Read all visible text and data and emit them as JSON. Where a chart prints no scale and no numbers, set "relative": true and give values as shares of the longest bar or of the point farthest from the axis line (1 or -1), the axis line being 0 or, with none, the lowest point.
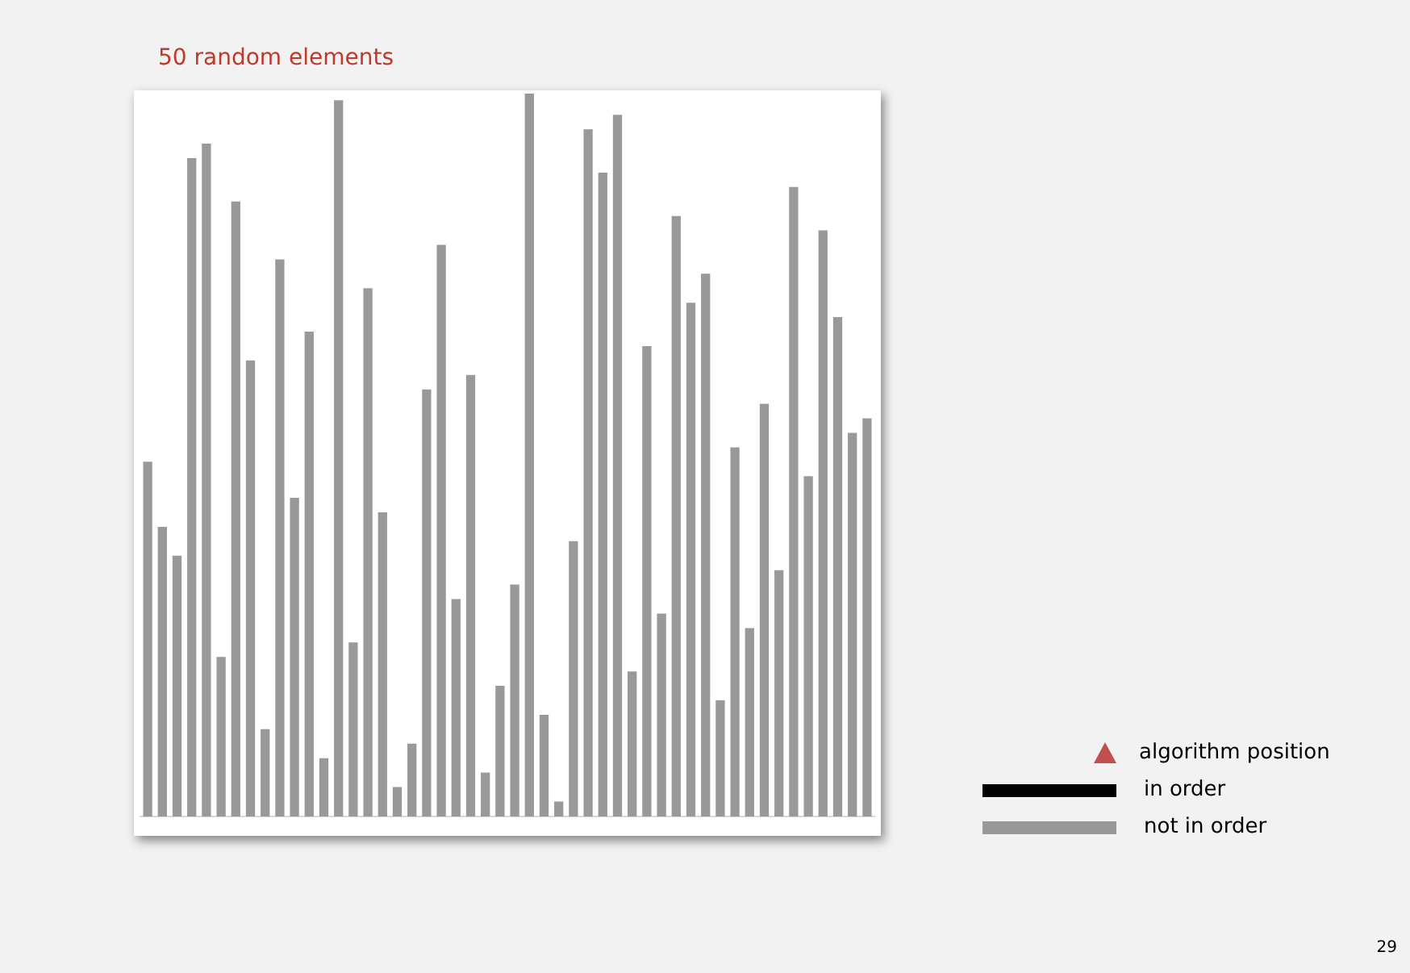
{
  "chart_data": {
    "type": "bar",
    "title": "50 random elements",
    "relative": true,
    "legend": "bottom right",
    "annotations": [
      "algorithm position",
      "in order",
      "29"
    ],
    "categories": [
      null,
      null,
      null,
      null,
      null,
      null,
      null,
      null,
      null,
      null,
      null,
      null,
      null,
      null,
      null,
      null,
      null,
      null,
      null,
      null,
      null,
      null,
      null,
      null,
      null,
      null,
      null,
      null,
      null,
      null,
      null,
      null,
      null,
      null,
      null,
      null,
      null,
      null,
      null,
      null,
      null,
      null,
      null,
      null,
      null,
      null,
      null,
      null,
      null,
      null
    ],
    "series": [
      {
        "name": "not in order",
        "color": "#999999",
        "values": [
          0.49,
          0.4,
          0.36,
          0.91,
          0.93,
          0.22,
          0.85,
          0.63,
          0.12,
          0.77,
          0.44,
          0.67,
          0.08,
          0.99,
          0.24,
          0.73,
          0.42,
          0.04,
          0.1,
          0.59,
          0.79,
          0.3,
          0.61,
          0.06,
          0.18,
          0.32,
          1,
          0.14,
          0.02,
          0.38,
          0.95,
          0.89,
          0.97,
          0.2,
          0.65,
          0.28,
          0.83,
          0.71,
          0.75,
          0.16,
          0.51,
          0.26,
          0.57,
          0.34,
          0.87,
          0.47,
          0.81,
          0.69,
          0.53,
          0.55
        ]
      }
    ]
  }
}
